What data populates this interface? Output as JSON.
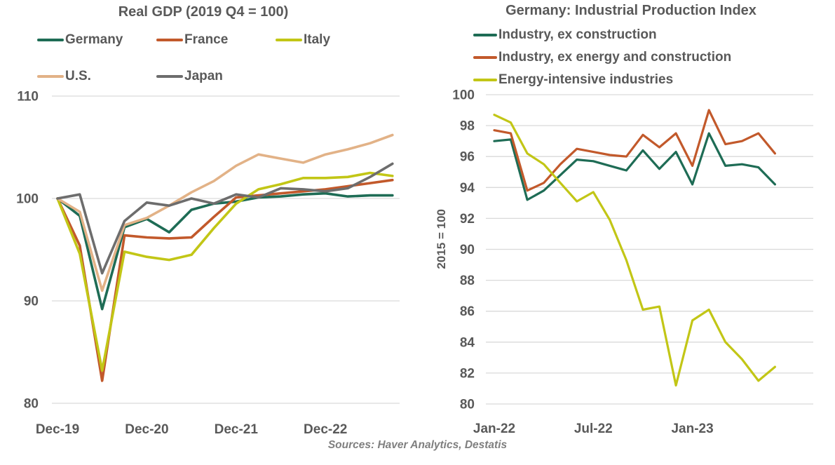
{
  "style": {
    "text_color": "#595959",
    "grid_color": "#d9d9d9",
    "sources_color": "#7f7f7f"
  },
  "sources": "Sources: Haver Analytics, Destatis",
  "chart_data": [
    {
      "type": "line",
      "title": "Real GDP (2019 Q4 = 100)",
      "xlabel": "",
      "ylabel": "",
      "ylim": [
        80,
        110
      ],
      "y_ticks": [
        80,
        90,
        100,
        110
      ],
      "grid": true,
      "legend_position": "top",
      "n_points": 16,
      "x_frequency": "quarterly",
      "x_tick_labels": [
        "Dec-19",
        "Dec-20",
        "Dec-21",
        "Dec-22"
      ],
      "x_tick_indices": [
        0,
        4,
        8,
        12
      ],
      "series": [
        {
          "name": "Germany",
          "color": "#1e6c55",
          "values": [
            100,
            98.3,
            89.2,
            97.2,
            98.0,
            96.7,
            98.9,
            99.5,
            99.7,
            100.1,
            100.2,
            100.4,
            100.5,
            100.2,
            100.3,
            100.3
          ]
        },
        {
          "name": "France",
          "color": "#c2592b",
          "values": [
            100,
            95.4,
            82.2,
            96.4,
            96.2,
            96.1,
            96.2,
            98.2,
            100.1,
            100.3,
            100.5,
            100.7,
            100.9,
            101.2,
            101.5,
            101.8
          ]
        },
        {
          "name": "Italy",
          "color": "#c2c616",
          "values": [
            100,
            94.6,
            83.2,
            94.8,
            94.3,
            94.0,
            94.5,
            97.1,
            99.5,
            100.9,
            101.4,
            102.0,
            102.0,
            102.1,
            102.5,
            102.2
          ]
        },
        {
          "name": "U.S.",
          "color": "#e2b287",
          "values": [
            100,
            98.7,
            91.0,
            97.4,
            98.1,
            99.3,
            100.6,
            101.7,
            103.2,
            104.3,
            103.9,
            103.5,
            104.3,
            104.8,
            105.4,
            106.2
          ]
        },
        {
          "name": "Japan",
          "color": "#6d6d6d",
          "values": [
            100,
            100.4,
            92.7,
            97.8,
            99.6,
            99.3,
            100.0,
            99.5,
            100.4,
            100.1,
            101.0,
            100.9,
            100.7,
            101.0,
            102.1,
            103.4
          ]
        }
      ]
    },
    {
      "type": "line",
      "title": "Germany: Industrial Production Index",
      "xlabel": "",
      "ylabel": "2015 = 100",
      "ylim": [
        80,
        100
      ],
      "y_ticks": [
        80,
        82,
        84,
        86,
        88,
        90,
        92,
        94,
        96,
        98,
        100
      ],
      "grid": true,
      "legend_position": "top-left",
      "n_points": 18,
      "x_frequency": "monthly",
      "x_tick_labels": [
        "Jan-22",
        "Jul-22",
        "Jan-23"
      ],
      "x_tick_indices": [
        0,
        6,
        12
      ],
      "series": [
        {
          "name": "Industry, ex construction",
          "color": "#1e6c55",
          "values": [
            97.0,
            97.1,
            93.2,
            93.8,
            94.8,
            95.8,
            95.7,
            95.4,
            95.1,
            96.4,
            95.2,
            96.3,
            94.2,
            97.5,
            95.4,
            95.5,
            95.3,
            94.2
          ]
        },
        {
          "name": "Industry, ex energy and construction",
          "color": "#c2592b",
          "values": [
            97.7,
            97.5,
            93.8,
            94.3,
            95.5,
            96.5,
            96.3,
            96.1,
            96.0,
            97.4,
            96.6,
            97.5,
            95.4,
            99.0,
            96.8,
            97.0,
            97.5,
            96.2
          ]
        },
        {
          "name": "Energy-intensive industries",
          "color": "#c2c616",
          "values": [
            98.7,
            98.2,
            96.2,
            95.5,
            94.3,
            93.1,
            93.7,
            91.9,
            89.3,
            86.1,
            86.3,
            81.2,
            85.4,
            86.1,
            84.0,
            82.9,
            81.5,
            82.4
          ]
        }
      ]
    }
  ]
}
